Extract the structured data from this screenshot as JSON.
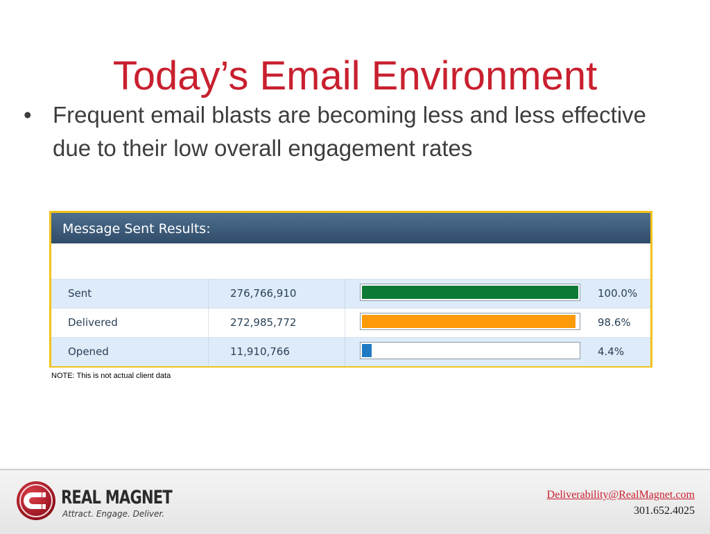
{
  "slide": {
    "title": "Today’s Email Environment",
    "bullets": [
      "Frequent email blasts are becoming less and less effective due to their low overall engagement rates"
    ]
  },
  "results_panel": {
    "header": "Message Sent Results:",
    "rows": [
      {
        "label": "Sent",
        "count": "276,766,910",
        "percent_label": "100.0%",
        "percent": 100.0,
        "bar_color": "#0a7a34"
      },
      {
        "label": "Delivered",
        "count": "272,985,772",
        "percent_label": "98.6%",
        "percent": 98.6,
        "bar_color": "#ff9a0a"
      },
      {
        "label": "Opened",
        "count": "11,910,766",
        "percent_label": "4.4%",
        "percent": 4.4,
        "bar_color": "#1f7ac4"
      }
    ]
  },
  "note": "NOTE: This is not actual client data",
  "footer": {
    "logo": {
      "name": "REAL MAGNET",
      "tagline": "Attract. Engage. Deliver.",
      "icon": "magnet-icon"
    },
    "email": "Deliverability@RealMagnet.com",
    "phone": "301.652.4025"
  },
  "colors": {
    "title": "#c8202f",
    "panel_border": "#f2c21b",
    "panel_header": "#3b5a78",
    "row_alt": "#deebf8"
  }
}
